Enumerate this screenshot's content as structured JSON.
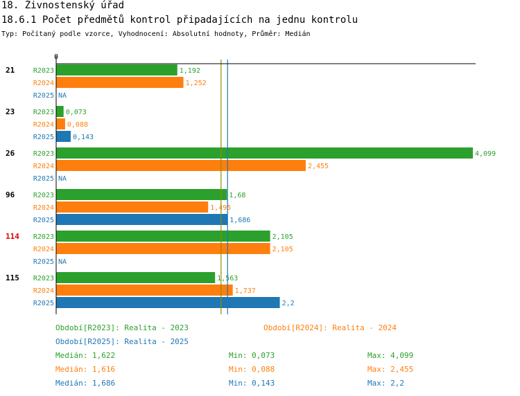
{
  "header": {
    "title": "18. Živnostenský úřad",
    "subtitle": "18.6.1 Počet předmětů kontrol připadajících na jednu kontrolu",
    "typeline": "Typ: Počítaný podle vzorce, Vyhodnocení: Absolutní hodnoty, Průměr: Medián"
  },
  "colors": {
    "R2023": "#2ca02c",
    "R2024": "#ff7f0e",
    "R2025": "#1f77b4",
    "highlight": "#e00000",
    "axis": "#000000",
    "median2023": "#8c8c00",
    "median2025": "#1f77b4"
  },
  "chart_data": {
    "type": "bar",
    "orientation": "horizontal",
    "axis_zero_label": "0",
    "xlim": [
      0,
      4.099
    ],
    "series_names": [
      "R2023",
      "R2024",
      "R2025"
    ],
    "groups": [
      {
        "id": "21",
        "highlight": false,
        "bars": [
          {
            "series": "R2023",
            "value": 1.192,
            "label": "1,192"
          },
          {
            "series": "R2024",
            "value": 1.252,
            "label": "1,252"
          },
          {
            "series": "R2025",
            "value": null,
            "label": "NA"
          }
        ]
      },
      {
        "id": "23",
        "highlight": false,
        "bars": [
          {
            "series": "R2023",
            "value": 0.073,
            "label": "0,073"
          },
          {
            "series": "R2024",
            "value": 0.088,
            "label": "0,088"
          },
          {
            "series": "R2025",
            "value": 0.143,
            "label": "0,143"
          }
        ]
      },
      {
        "id": "26",
        "highlight": false,
        "bars": [
          {
            "series": "R2023",
            "value": 4.099,
            "label": "4,099"
          },
          {
            "series": "R2024",
            "value": 2.455,
            "label": "2,455"
          },
          {
            "series": "R2025",
            "value": null,
            "label": "NA"
          }
        ]
      },
      {
        "id": "96",
        "highlight": false,
        "bars": [
          {
            "series": "R2023",
            "value": 1.68,
            "label": "1,68"
          },
          {
            "series": "R2024",
            "value": 1.495,
            "label": "1,495"
          },
          {
            "series": "R2025",
            "value": 1.686,
            "label": "1,686"
          }
        ]
      },
      {
        "id": "114",
        "highlight": true,
        "bars": [
          {
            "series": "R2023",
            "value": 2.105,
            "label": "2,105"
          },
          {
            "series": "R2024",
            "value": 2.105,
            "label": "2,105"
          },
          {
            "series": "R2025",
            "value": null,
            "label": "NA"
          }
        ]
      },
      {
        "id": "115",
        "highlight": false,
        "bars": [
          {
            "series": "R2023",
            "value": 1.563,
            "label": "1,563"
          },
          {
            "series": "R2024",
            "value": 1.737,
            "label": "1,737"
          },
          {
            "series": "R2025",
            "value": 2.2,
            "label": "2,2"
          }
        ]
      }
    ],
    "median_lines": [
      {
        "series": "R2023",
        "value": 1.622
      },
      {
        "series": "R2025",
        "value": 1.686
      }
    ]
  },
  "legend": {
    "period_2023": "Období[R2023]: Realita - 2023",
    "period_2024": "Období[R2024]: Realita - 2024",
    "period_2025": "Období[R2025]: Realita - 2025",
    "stats": [
      {
        "series": "R2023",
        "median": "Medián: 1,622",
        "min": "Min: 0,073",
        "max": "Max: 4,099"
      },
      {
        "series": "R2024",
        "median": "Medián: 1,616",
        "min": "Min: 0,088",
        "max": "Max: 2,455"
      },
      {
        "series": "R2025",
        "median": "Medián: 1,686",
        "min": "Min: 0,143",
        "max": "Max: 2,2"
      }
    ]
  }
}
